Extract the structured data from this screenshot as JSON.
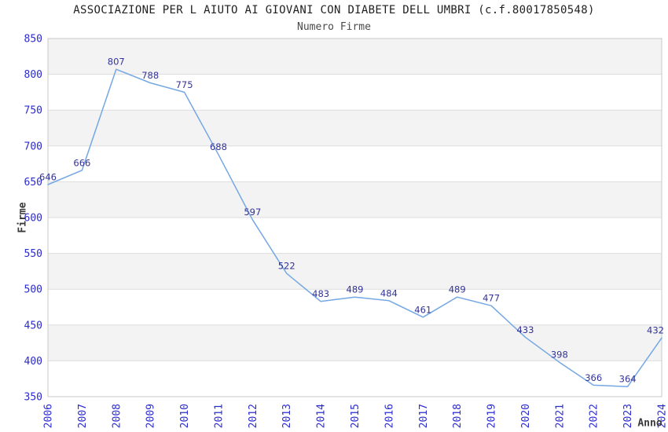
{
  "header": {
    "title": "ASSOCIAZIONE PER L AIUTO AI GIOVANI CON DIABETE DELL UMBRI (c.f.80017850548)",
    "subtitle": "Numero Firme"
  },
  "chart_data": {
    "type": "line",
    "title": "ASSOCIAZIONE PER L AIUTO AI GIOVANI CON DIABETE DELL UMBRI (c.f.80017850548)",
    "subtitle": "Numero Firme",
    "xlabel": "Anno",
    "ylabel": "Firme",
    "categories": [
      "2006",
      "2007",
      "2008",
      "2009",
      "2010",
      "2011",
      "2012",
      "2013",
      "2014",
      "2015",
      "2016",
      "2017",
      "2018",
      "2019",
      "2020",
      "2021",
      "2022",
      "2023",
      "2024"
    ],
    "series": [
      {
        "name": "Numero Firme",
        "values": [
          646,
          666,
          807,
          788,
          775,
          688,
          597,
          522,
          483,
          489,
          484,
          461,
          489,
          477,
          433,
          398,
          366,
          364,
          432
        ]
      }
    ],
    "ylim": [
      350,
      850
    ],
    "ytick_step": 50,
    "yticks": [
      350,
      400,
      450,
      500,
      550,
      600,
      650,
      700,
      750,
      800,
      850
    ],
    "grid": "horizontal-bands",
    "legend": "none",
    "data_labels": true,
    "colors": {
      "line": "#74a7e4",
      "data_label": "#333399",
      "tick_label": "#2b2bd0",
      "band": "#f3f3f3",
      "gridline": "#dedede",
      "border": "#c9c9c9",
      "title": "#1f1f1f"
    }
  }
}
